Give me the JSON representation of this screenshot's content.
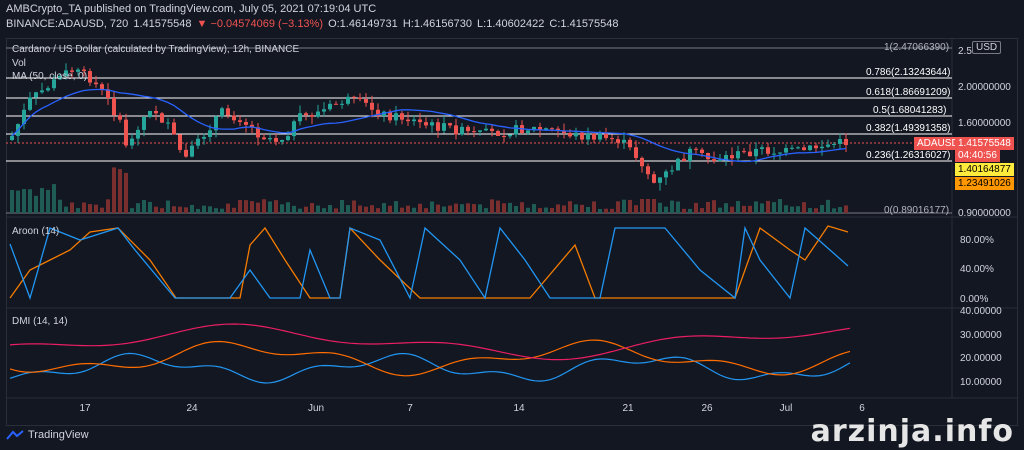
{
  "header": {
    "line1": "AMBCrypto_TA published on TradingView.com, July 05, 2021 07:19:04 UTC",
    "symbol": "BINANCE:ADAUSD, 720",
    "last": "1.41575548",
    "change": "▼ −0.04574069 (−3.13%)",
    "open": "O:1.46149731",
    "high": "H:1.46156730",
    "low": "L:1.40602422",
    "close": "C:1.41575548"
  },
  "main_pane": {
    "title": "Cardano / US Dollar (calculated by TradingView), 12h, BINANCE",
    "vol_label": "Vol",
    "ma_label": "MA (50, close, 0)",
    "currency": "USD",
    "fib_top": "1(2.47066390)",
    "fib_bottom": "0(0.89016177)",
    "fib_levels": [
      {
        "label": "0.786(2.13243644)",
        "price": 2.13243644
      },
      {
        "label": "0.618(1.86691209)",
        "price": 1.86691209
      },
      {
        "label": "0.5(1.68041283)",
        "price": 1.68041283
      },
      {
        "label": "0.382(1.49391358)",
        "price": 1.49391358
      },
      {
        "label": "0.236(1.26316027)",
        "price": 1.26316027
      }
    ],
    "price_axis": [
      "2.5",
      "2.00000000",
      "1.60000000",
      "0.90000000"
    ],
    "badge_symbol": "ADAUSD",
    "badge_price": "1.41575548",
    "countdown": "04:40:56",
    "marker_1": "1.40164877",
    "marker_2": "1.23491026"
  },
  "aroon_pane": {
    "title": "Aroon (14)",
    "axis": [
      "80.00%",
      "40.00%",
      "0.00%"
    ]
  },
  "dmi_pane": {
    "title": "DMI (14, 14)",
    "axis": [
      "40.00000",
      "30.00000",
      "20.00000",
      "10.00000"
    ]
  },
  "x_axis": [
    "17",
    "24",
    "Jun",
    "7",
    "14",
    "21",
    "26",
    "Jul",
    "6"
  ],
  "footer": {
    "brand": "TradingView",
    "watermark": "arzinja.info"
  },
  "colors": {
    "up": "#26a69a",
    "down": "#ef5350",
    "ma": "#2962ff",
    "aroon_up": "#f57c00",
    "aroon_down": "#2196f3",
    "dmi_plus": "#2196f3",
    "dmi_minus": "#ff6d00",
    "adx": "#e91e63"
  }
}
